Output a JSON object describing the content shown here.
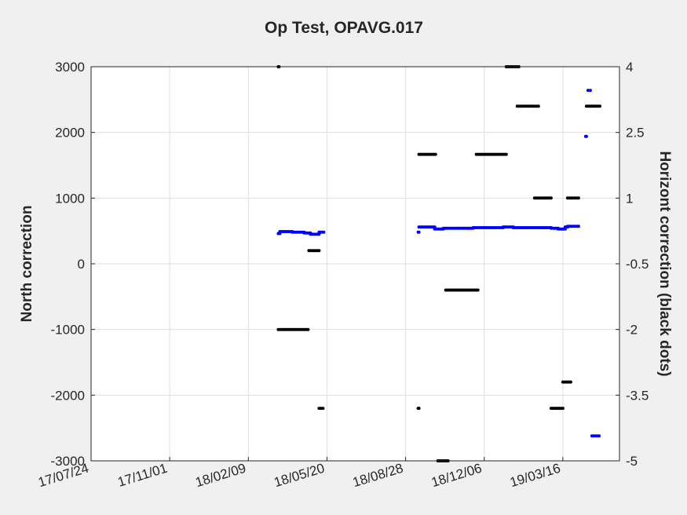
{
  "chart_data": {
    "type": "scatter",
    "title": "Op Test, OPAVG.017",
    "xlabel": "",
    "ylabel": "North correction",
    "y2label": "Horizont correction (black dots)",
    "x_ticks": [
      "17/07/24",
      "17/11/01",
      "18/02/09",
      "18/05/20",
      "18/08/28",
      "18/12/06",
      "19/03/16"
    ],
    "xlim": [
      "17/07/24",
      "19/05/27"
    ],
    "ylim": [
      -3000,
      3000
    ],
    "y_ticks": [
      "3000",
      "2000",
      "1000",
      "0",
      "-1000",
      "-2000",
      "-3000"
    ],
    "y2lim": [
      -5,
      4
    ],
    "y2_ticks": [
      "4",
      "2.5",
      "1",
      "-0.5",
      "-2",
      "-3.5",
      "-5"
    ],
    "grid": true,
    "colors": {
      "north": "#0000ff",
      "horizont": "#000000"
    },
    "series": [
      {
        "name": "North correction",
        "axis": "left",
        "color": "#0000ff",
        "segments": [
          {
            "start": "18/03/19",
            "end": "18/03/21",
            "value": 460
          },
          {
            "start": "18/03/21",
            "end": "18/04/06",
            "value": 490
          },
          {
            "start": "18/04/06",
            "end": "18/04/21",
            "value": 480
          },
          {
            "start": "18/04/21",
            "end": "18/04/29",
            "value": 470
          },
          {
            "start": "18/04/29",
            "end": "18/05/10",
            "value": 450
          },
          {
            "start": "18/05/10",
            "end": "18/05/16",
            "value": 480
          },
          {
            "start": "18/09/13",
            "end": "18/09/14",
            "value": 480
          },
          {
            "start": "18/09/14",
            "end": "18/10/04",
            "value": 560
          },
          {
            "start": "18/10/04",
            "end": "18/10/15",
            "value": 530
          },
          {
            "start": "18/10/15",
            "end": "18/11/22",
            "value": 540
          },
          {
            "start": "18/11/22",
            "end": "18/12/30",
            "value": 550
          },
          {
            "start": "18/12/30",
            "end": "19/01/12",
            "value": 560
          },
          {
            "start": "19/01/12",
            "end": "19/03/01",
            "value": 550
          },
          {
            "start": "19/03/01",
            "end": "19/03/10",
            "value": 540
          },
          {
            "start": "19/03/10",
            "end": "19/03/19",
            "value": 530
          },
          {
            "start": "19/03/19",
            "end": "19/03/22",
            "value": 560
          },
          {
            "start": "19/03/22",
            "end": "19/04/05",
            "value": 570
          },
          {
            "start": "19/04/14",
            "end": "19/04/15",
            "value": 1940
          },
          {
            "start": "19/04/17",
            "end": "19/04/20",
            "value": 2640
          },
          {
            "start": "19/04/22",
            "end": "19/05/01",
            "value": -2620
          }
        ]
      },
      {
        "name": "Horizont correction",
        "axis": "right",
        "color": "#000000",
        "segments": [
          {
            "start": "18/03/19",
            "end": "18/03/20",
            "value": 4
          },
          {
            "start": "18/03/19",
            "end": "18/04/26",
            "value": -2
          },
          {
            "start": "18/04/27",
            "end": "18/05/10",
            "value": -0.2
          },
          {
            "start": "18/05/10",
            "end": "18/05/15",
            "value": -3.8
          },
          {
            "start": "18/09/13",
            "end": "18/09/14",
            "value": -3.8
          },
          {
            "start": "18/09/14",
            "end": "18/10/05",
            "value": 2
          },
          {
            "start": "18/10/08",
            "end": "18/10/21",
            "value": -5
          },
          {
            "start": "18/10/18",
            "end": "18/11/28",
            "value": -1.1
          },
          {
            "start": "18/11/26",
            "end": "19/01/03",
            "value": 2
          },
          {
            "start": "19/01/03",
            "end": "19/01/19",
            "value": 4
          },
          {
            "start": "19/01/17",
            "end": "19/02/13",
            "value": 3.1
          },
          {
            "start": "19/02/08",
            "end": "19/03/01",
            "value": 1
          },
          {
            "start": "19/03/01",
            "end": "19/03/16",
            "value": -3.8
          },
          {
            "start": "19/03/16",
            "end": "19/03/26",
            "value": -3.2
          },
          {
            "start": "19/03/22",
            "end": "19/04/05",
            "value": 1
          },
          {
            "start": "19/04/15",
            "end": "19/05/02",
            "value": 3.1
          }
        ]
      }
    ]
  }
}
